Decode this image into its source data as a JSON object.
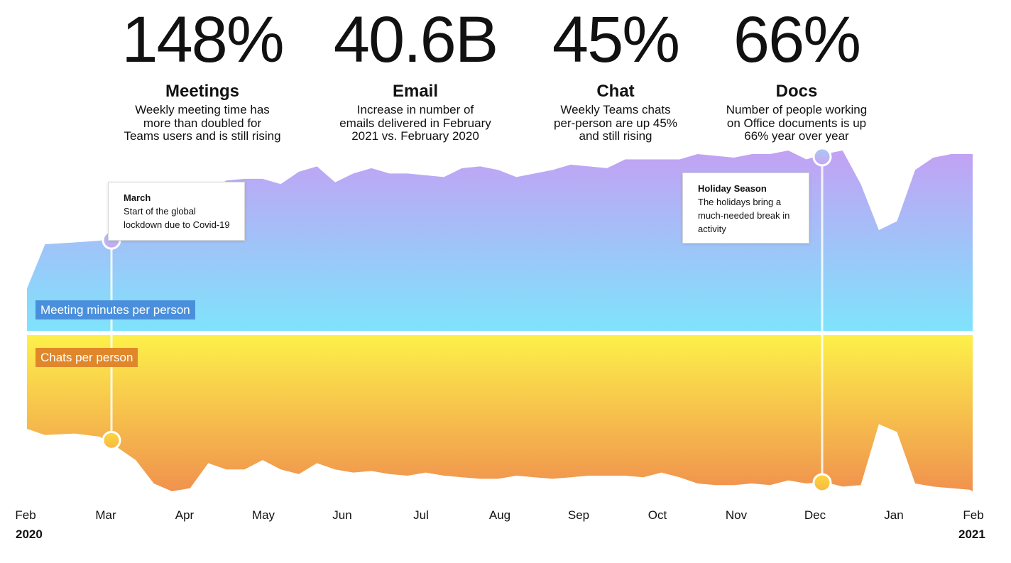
{
  "stats": [
    {
      "value": "148%",
      "label": "Meetings",
      "desc": "Weekly meeting time has\nmore than doubled for\nTeams users and is still rising"
    },
    {
      "value": "40.6B",
      "label": "Email",
      "desc": "Increase in number of\nemails delivered in February\n2021 vs. February 2020"
    },
    {
      "value": "45%",
      "label": "Chat",
      "desc": "Weekly Teams chats\nper-person are up 45%\nand still rising"
    },
    {
      "value": "66%",
      "label": "Docs",
      "desc": "Number of people working\non Office documents is up\n66% year over year"
    }
  ],
  "callouts": [
    {
      "title": "March",
      "text": "Start of the global\nlockdown due to Covid-19"
    },
    {
      "title": "Holiday Season",
      "text": "The holidays bring a\nmuch-needed break in\nactivity"
    }
  ],
  "series_labels": {
    "meetings": "Meeting minutes per person",
    "chats": "Chats per person"
  },
  "x_axis": {
    "months": [
      "Feb",
      "Mar",
      "Apr",
      "May",
      "Jun",
      "Jul",
      "Aug",
      "Sep",
      "Oct",
      "Nov",
      "Dec",
      "Jan",
      "Feb"
    ],
    "start_year": "2020",
    "end_year": "2021"
  },
  "colors": {
    "meetings_top": "#c3a1f4",
    "meetings_bottom": "#7fe3fc",
    "chats_top": "#fdf04a",
    "chats_bottom": "#f0924e",
    "meetings_label_bg": "#4a8fdc",
    "chats_label_bg": "#e0872a"
  },
  "chart_data": {
    "type": "area",
    "x_range": [
      0,
      12
    ],
    "x_labels": [
      "Feb",
      "Mar",
      "Apr",
      "May",
      "Jun",
      "Jul",
      "Aug",
      "Sep",
      "Oct",
      "Nov",
      "Dec",
      "Jan",
      "Feb"
    ],
    "series": [
      {
        "name": "Meeting minutes per person",
        "direction": "up",
        "x": [
          0,
          0.23,
          0.6,
          0.92,
          1.15,
          1.38,
          1.61,
          1.84,
          2.07,
          2.3,
          2.53,
          2.76,
          2.99,
          3.22,
          3.45,
          3.68,
          3.91,
          4.14,
          4.37,
          4.6,
          4.83,
          5.06,
          5.29,
          5.52,
          5.75,
          5.98,
          6.21,
          6.44,
          6.67,
          6.9,
          7.13,
          7.36,
          7.59,
          7.82,
          8.05,
          8.28,
          8.51,
          8.74,
          8.97,
          9.2,
          9.43,
          9.66,
          9.89,
          10.12,
          10.35,
          10.58,
          10.81,
          11.04,
          11.27,
          11.5,
          11.73,
          11.96,
          12
        ],
        "values": [
          0.24,
          0.49,
          0.5,
          0.51,
          0.52,
          0.54,
          0.56,
          0.63,
          0.73,
          0.78,
          0.85,
          0.86,
          0.86,
          0.83,
          0.9,
          0.93,
          0.84,
          0.89,
          0.92,
          0.89,
          0.89,
          0.88,
          0.87,
          0.92,
          0.93,
          0.91,
          0.87,
          0.89,
          0.91,
          0.94,
          0.93,
          0.92,
          0.97,
          0.97,
          0.97,
          0.97,
          1.0,
          0.99,
          0.98,
          1.0,
          1.0,
          1.02,
          0.97,
          1.0,
          1.02,
          0.83,
          0.57,
          0.62,
          0.91,
          0.98,
          1.0,
          1.0,
          1.0
        ]
      },
      {
        "name": "Chats per person",
        "direction": "down",
        "x": [
          0,
          0.23,
          0.6,
          0.92,
          1.15,
          1.38,
          1.61,
          1.84,
          2.07,
          2.3,
          2.53,
          2.76,
          2.99,
          3.22,
          3.45,
          3.68,
          3.91,
          4.14,
          4.37,
          4.6,
          4.83,
          5.06,
          5.29,
          5.52,
          5.75,
          5.98,
          6.21,
          6.44,
          6.67,
          6.9,
          7.13,
          7.36,
          7.59,
          7.82,
          8.05,
          8.28,
          8.51,
          8.74,
          8.97,
          9.2,
          9.43,
          9.66,
          9.89,
          10.12,
          10.35,
          10.58,
          10.81,
          11.04,
          11.27,
          11.5,
          11.73,
          11.96,
          12
        ],
        "values": [
          0.6,
          0.64,
          0.63,
          0.65,
          0.72,
          0.8,
          0.95,
          1.0,
          0.98,
          0.82,
          0.86,
          0.86,
          0.8,
          0.86,
          0.89,
          0.82,
          0.86,
          0.88,
          0.87,
          0.89,
          0.9,
          0.88,
          0.9,
          0.91,
          0.92,
          0.92,
          0.9,
          0.91,
          0.92,
          0.91,
          0.9,
          0.9,
          0.9,
          0.91,
          0.88,
          0.91,
          0.95,
          0.96,
          0.96,
          0.95,
          0.96,
          0.93,
          0.95,
          0.94,
          0.97,
          0.96,
          0.57,
          0.62,
          0.95,
          0.97,
          0.98,
          0.99,
          1.0
        ]
      }
    ],
    "annotations": [
      {
        "x": 1.0,
        "title": "March",
        "text": "Start of the global lockdown due to Covid-19"
      },
      {
        "x": 10.0,
        "title": "Holiday Season",
        "text": "The holidays bring a much-needed break in activity"
      }
    ],
    "grid": false,
    "legend": "left inside"
  }
}
